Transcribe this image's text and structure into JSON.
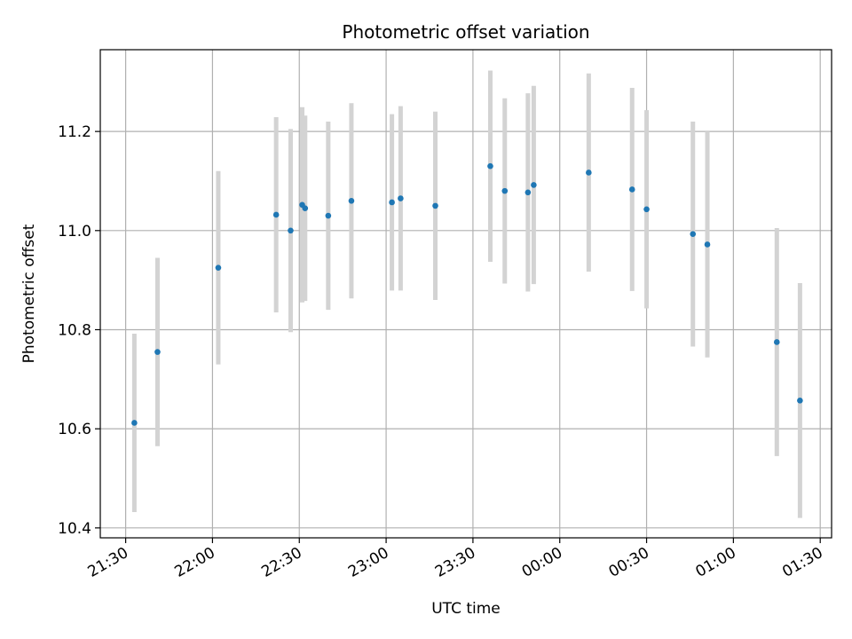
{
  "chart_data": {
    "type": "scatter",
    "title": "Photometric offset variation",
    "xlabel": "UTC time",
    "ylabel": "Photometric offset",
    "x_tick_labels": [
      "21:30",
      "22:00",
      "22:30",
      "23:00",
      "23:30",
      "00:00",
      "00:30",
      "01:00",
      "01:30"
    ],
    "y_tick_labels": [
      "10.4",
      "10.6",
      "10.8",
      "11.0",
      "11.2"
    ],
    "y_ticks": [
      10.4,
      10.6,
      10.8,
      11.0,
      11.2
    ],
    "ylim": [
      10.38,
      11.365
    ],
    "grid": true,
    "marker_color": "#1f77b4",
    "errorbar_color": "#d3d3d3",
    "points": [
      {
        "t": "21:33",
        "y": 10.612,
        "err": 0.18
      },
      {
        "t": "21:41",
        "y": 10.755,
        "err": 0.19
      },
      {
        "t": "22:02",
        "y": 10.925,
        "err": 0.195
      },
      {
        "t": "22:22",
        "y": 11.032,
        "err": 0.197
      },
      {
        "t": "22:27",
        "y": 11.0,
        "err": 0.205
      },
      {
        "t": "22:31",
        "y": 11.052,
        "err": 0.197
      },
      {
        "t": "22:32",
        "y": 11.045,
        "err": 0.187
      },
      {
        "t": "22:40",
        "y": 11.03,
        "err": 0.19
      },
      {
        "t": "22:48",
        "y": 11.06,
        "err": 0.197
      },
      {
        "t": "23:02",
        "y": 11.057,
        "err": 0.178
      },
      {
        "t": "23:05",
        "y": 11.065,
        "err": 0.186
      },
      {
        "t": "23:17",
        "y": 11.05,
        "err": 0.19
      },
      {
        "t": "23:36",
        "y": 11.13,
        "err": 0.193
      },
      {
        "t": "23:41",
        "y": 11.08,
        "err": 0.187
      },
      {
        "t": "23:49",
        "y": 11.077,
        "err": 0.2
      },
      {
        "t": "23:51",
        "y": 11.092,
        "err": 0.2
      },
      {
        "t": "00:10",
        "y": 11.117,
        "err": 0.2
      },
      {
        "t": "00:25",
        "y": 11.083,
        "err": 0.205
      },
      {
        "t": "00:30",
        "y": 11.043,
        "err": 0.2
      },
      {
        "t": "00:46",
        "y": 10.993,
        "err": 0.227
      },
      {
        "t": "00:51",
        "y": 10.972,
        "err": 0.228
      },
      {
        "t": "01:15",
        "y": 10.775,
        "err": 0.23
      },
      {
        "t": "01:23",
        "y": 10.657,
        "err": 0.237
      }
    ]
  }
}
